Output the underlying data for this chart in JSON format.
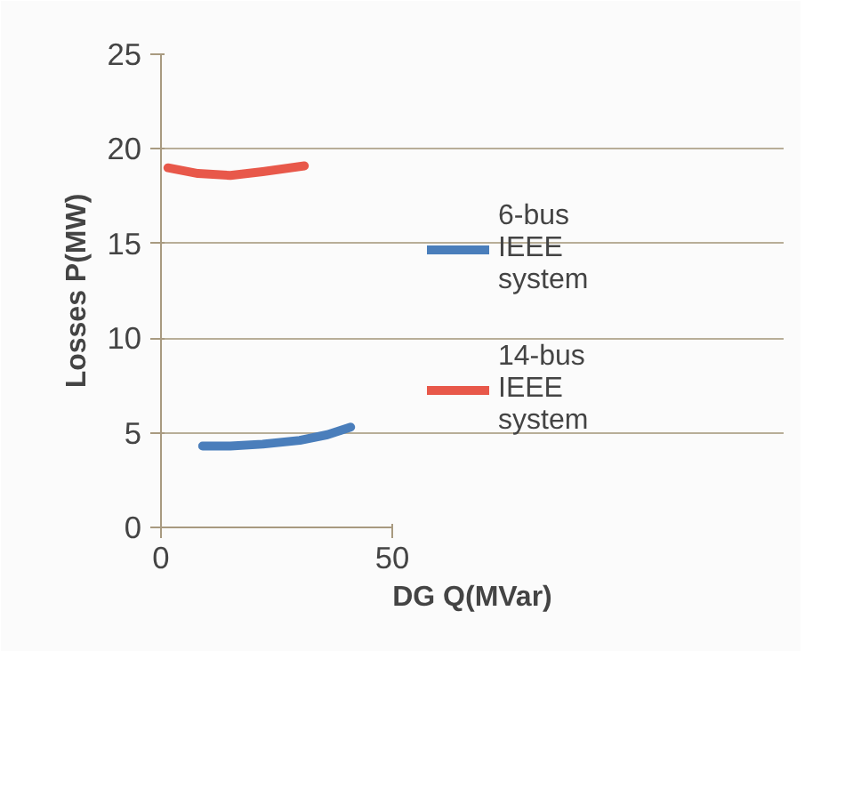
{
  "chart_data": {
    "type": "line",
    "xlabel": "DG Q(MVar)",
    "ylabel": "Losses P(MW)",
    "xlim": [
      0,
      50
    ],
    "xticks": [
      0,
      50
    ],
    "ylim": [
      0,
      25
    ],
    "yticks": [
      0,
      5,
      10,
      15,
      20,
      25
    ],
    "grid": "y",
    "legend": "right",
    "marker": "none",
    "series": [
      {
        "name": "6-bus IEEE system",
        "color": "#4a7ebb",
        "x": [
          9,
          15,
          22,
          30,
          36,
          41
        ],
        "values": [
          4.3,
          4.3,
          4.4,
          4.6,
          4.9,
          5.3
        ]
      },
      {
        "name": "14-bus IEEE system",
        "color": "#e8584a",
        "x": [
          1.5,
          8,
          15,
          22,
          31
        ],
        "values": [
          19.0,
          18.7,
          18.6,
          18.8,
          19.1
        ]
      }
    ]
  }
}
